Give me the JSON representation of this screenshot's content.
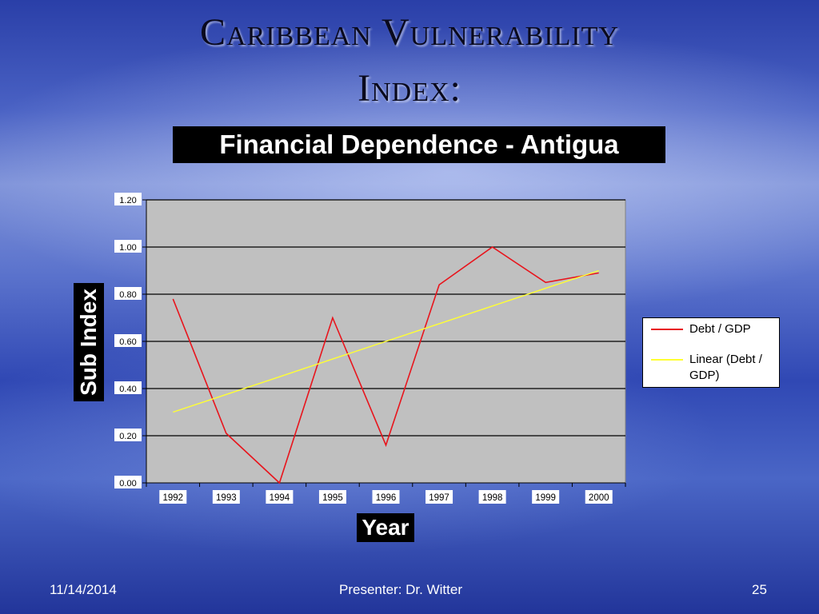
{
  "slide": {
    "title_line1": "Caribbean Vulnerability",
    "title_line2": "Index:"
  },
  "chart_data": {
    "type": "line",
    "title": "Financial Dependence - Antigua",
    "xlabel": "Year",
    "ylabel": "Sub Index",
    "categories": [
      "1992",
      "1993",
      "1994",
      "1995",
      "1996",
      "1997",
      "1998",
      "1999",
      "2000"
    ],
    "series": [
      {
        "name": "Debt / GDP",
        "color": "#e8141c",
        "values": [
          0.78,
          0.21,
          0.0,
          0.7,
          0.16,
          0.84,
          1.0,
          0.85,
          0.89
        ]
      },
      {
        "name": "Linear (Debt / GDP)",
        "color": "#ffff33",
        "values": [
          0.3,
          0.375,
          0.45,
          0.525,
          0.6,
          0.675,
          0.75,
          0.825,
          0.9
        ]
      }
    ],
    "ylim": [
      0,
      1.2
    ],
    "yticks": [
      "0.00",
      "0.20",
      "0.40",
      "0.60",
      "0.80",
      "1.00",
      "1.20"
    ],
    "grid": true,
    "plot_background": "#c0c0c0",
    "legend_position": "right"
  },
  "footer": {
    "date": "11/14/2014",
    "presenter": "Presenter: Dr. Witter",
    "page": "25"
  }
}
